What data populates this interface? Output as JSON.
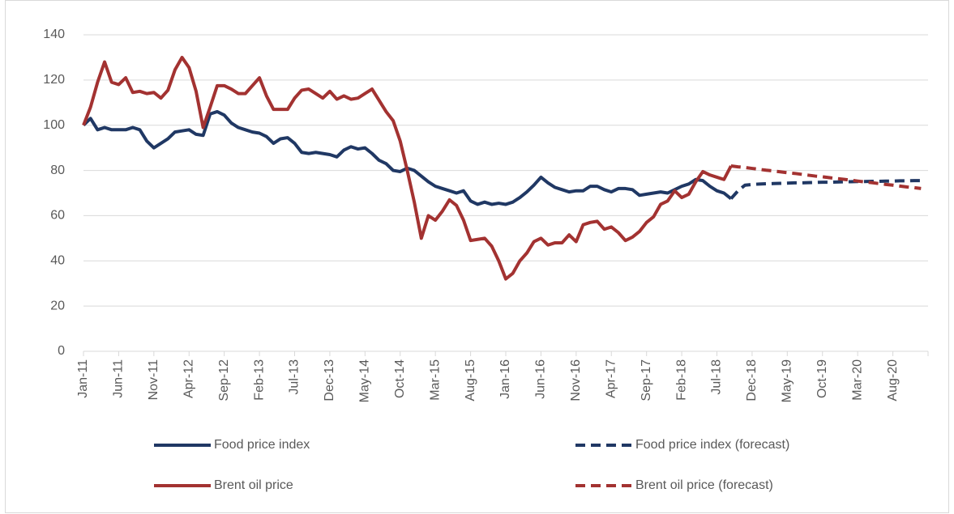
{
  "chart_data": {
    "type": "line",
    "categories": [
      "Jan-11",
      null,
      null,
      null,
      null,
      "Jun-11",
      null,
      null,
      null,
      null,
      "Nov-11",
      null,
      null,
      null,
      null,
      "Apr-12",
      null,
      null,
      null,
      null,
      "Sep-12",
      null,
      null,
      null,
      null,
      "Feb-13",
      null,
      null,
      null,
      null,
      "Jul-13",
      null,
      null,
      null,
      null,
      "Dec-13",
      null,
      null,
      null,
      null,
      "May-14",
      null,
      null,
      null,
      null,
      "Oct-14",
      null,
      null,
      null,
      null,
      "Mar-15",
      null,
      null,
      null,
      null,
      "Aug-15",
      null,
      null,
      null,
      null,
      "Jan-16",
      null,
      null,
      null,
      null,
      "Jun-16",
      null,
      null,
      null,
      null,
      "Nov-16",
      null,
      null,
      null,
      null,
      "Apr-17",
      null,
      null,
      null,
      null,
      "Sep-17",
      null,
      null,
      null,
      null,
      "Feb-18",
      null,
      null,
      null,
      null,
      "Jul-18",
      null,
      null,
      null,
      null,
      "Dec-18",
      null,
      null,
      null,
      null,
      "May-19",
      null,
      null,
      null,
      null,
      "Oct-19",
      null,
      null,
      null,
      null,
      "Mar-20",
      null,
      null,
      null,
      null,
      "Aug-20",
      null,
      null,
      null,
      null
    ],
    "series": [
      {
        "name": "Food price index",
        "color": "#203864",
        "style": "solid",
        "values": [
          100,
          103,
          98,
          99,
          98,
          98,
          98,
          99,
          98,
          93,
          90,
          92,
          94,
          97,
          97.5,
          98,
          96,
          95.5,
          105,
          106,
          104.5,
          101,
          99,
          98,
          97,
          96.5,
          95,
          92,
          94,
          94.5,
          92,
          88,
          87.5,
          88,
          87.5,
          87,
          86,
          89,
          90.5,
          89.5,
          90,
          87.5,
          84.5,
          83,
          80,
          79.5,
          81,
          80,
          77.5,
          75,
          73,
          72,
          71,
          70,
          71,
          66.5,
          65,
          66,
          65,
          65.5,
          65,
          66,
          68,
          70.5,
          73.5,
          77,
          74.5,
          72.5,
          71.5,
          70.5,
          71,
          71,
          73,
          73,
          71.5,
          70.5,
          72,
          72,
          71.5,
          69,
          69.5,
          70,
          70.5,
          70,
          71.5,
          73,
          74,
          76,
          75.5,
          73,
          71,
          70,
          67.5,
          null,
          null,
          null,
          null,
          null,
          null,
          null,
          null,
          null,
          null,
          null,
          null,
          null,
          null,
          null,
          null,
          null,
          null,
          null,
          null,
          null,
          null,
          null,
          null,
          null,
          null,
          null
        ]
      },
      {
        "name": "Food price index (forecast)",
        "color": "#203864",
        "style": "dashed",
        "values": [
          null,
          null,
          null,
          null,
          null,
          null,
          null,
          null,
          null,
          null,
          null,
          null,
          null,
          null,
          null,
          null,
          null,
          null,
          null,
          null,
          null,
          null,
          null,
          null,
          null,
          null,
          null,
          null,
          null,
          null,
          null,
          null,
          null,
          null,
          null,
          null,
          null,
          null,
          null,
          null,
          null,
          null,
          null,
          null,
          null,
          null,
          null,
          null,
          null,
          null,
          null,
          null,
          null,
          null,
          null,
          null,
          null,
          null,
          null,
          null,
          null,
          null,
          null,
          null,
          null,
          null,
          null,
          null,
          null,
          null,
          null,
          null,
          null,
          null,
          null,
          null,
          null,
          null,
          null,
          null,
          null,
          null,
          null,
          null,
          null,
          null,
          null,
          null,
          null,
          null,
          null,
          null,
          67.5,
          71,
          73.5,
          73.8,
          74,
          74.1,
          74.2,
          74.3,
          74.4,
          74.5,
          74.5,
          74.6,
          74.7,
          74.8,
          74.8,
          74.9,
          75,
          75,
          75.1,
          75.1,
          75.2,
          75.2,
          75.3,
          75.3,
          75.4,
          75.4,
          75.5,
          75.5
        ]
      },
      {
        "name": "Brent oil price",
        "color": "#a33231",
        "style": "solid",
        "values": [
          100,
          108,
          119,
          128,
          119,
          118,
          121,
          114.5,
          115,
          114,
          114.5,
          112,
          115.5,
          124.5,
          130,
          125.5,
          115,
          99,
          108,
          117.5,
          117.5,
          116,
          114,
          114,
          117.5,
          121,
          113,
          107,
          107,
          107,
          112,
          115.5,
          116,
          114,
          112,
          115,
          111.5,
          113,
          111.5,
          112,
          114,
          116,
          111,
          106,
          102,
          93,
          80,
          66,
          50,
          60,
          58,
          62,
          67,
          64.5,
          58,
          49,
          49.5,
          50,
          46.5,
          40,
          32,
          34.5,
          40,
          43.5,
          48.5,
          50,
          47,
          48,
          48,
          51.5,
          48.5,
          56,
          57,
          57.5,
          54,
          55,
          52.5,
          49,
          50.5,
          53,
          57,
          59.5,
          65,
          66.5,
          71,
          68,
          69.5,
          75,
          79.5,
          78,
          77,
          76,
          82,
          null,
          null,
          null,
          null,
          null,
          null,
          null,
          null,
          null,
          null,
          null,
          null,
          null,
          null,
          null,
          null,
          null,
          null,
          null,
          null,
          null,
          null,
          null,
          null,
          null,
          null,
          null
        ]
      },
      {
        "name": "Brent oil price (forecast)",
        "color": "#a33231",
        "style": "dashed",
        "values": [
          null,
          null,
          null,
          null,
          null,
          null,
          null,
          null,
          null,
          null,
          null,
          null,
          null,
          null,
          null,
          null,
          null,
          null,
          null,
          null,
          null,
          null,
          null,
          null,
          null,
          null,
          null,
          null,
          null,
          null,
          null,
          null,
          null,
          null,
          null,
          null,
          null,
          null,
          null,
          null,
          null,
          null,
          null,
          null,
          null,
          null,
          null,
          null,
          null,
          null,
          null,
          null,
          null,
          null,
          null,
          null,
          null,
          null,
          null,
          null,
          null,
          null,
          null,
          null,
          null,
          null,
          null,
          null,
          null,
          null,
          null,
          null,
          null,
          null,
          null,
          null,
          null,
          null,
          null,
          null,
          null,
          null,
          null,
          null,
          null,
          null,
          null,
          null,
          null,
          null,
          null,
          null,
          82,
          81.6,
          81.3,
          80.9,
          80.5,
          80.1,
          79.8,
          79.4,
          79,
          78.7,
          78.3,
          77.9,
          77.5,
          77.2,
          76.8,
          76.4,
          76.1,
          75.7,
          75.3,
          74.9,
          74.6,
          74.2,
          73.8,
          73.5,
          73.1,
          72.7,
          72.4,
          72
        ]
      }
    ],
    "ylim": [
      0,
      140
    ],
    "yticks": [
      0,
      20,
      40,
      60,
      80,
      100,
      120,
      140
    ],
    "grid": true,
    "legend": "bottom"
  }
}
